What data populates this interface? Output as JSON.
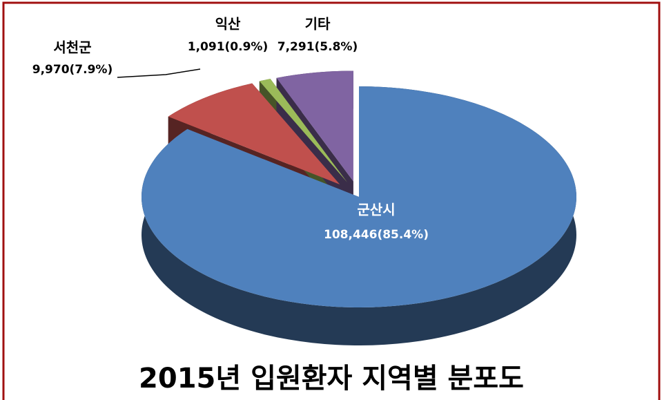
{
  "chart_data": {
    "type": "pie",
    "title": "2015년 입원환자 지역별 분포도",
    "categories": [
      "군산시",
      "서천군",
      "익산",
      "기타"
    ],
    "values": [
      108446,
      9970,
      1091,
      7291
    ],
    "value_labels": [
      "108,446(85.4%)",
      "9,970(7.9%)",
      "1,091(0.9%)",
      "7,291(5.8%)"
    ],
    "colors": [
      "#4f81bd",
      "#c0504d",
      "#9bbb59",
      "#8064a2"
    ]
  }
}
